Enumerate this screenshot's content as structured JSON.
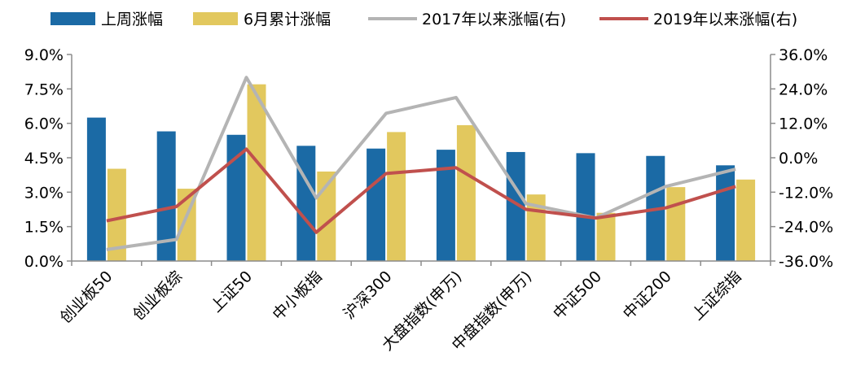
{
  "chart_data": {
    "type": "bar",
    "categories": [
      "创业板50",
      "创业板综",
      "上证50",
      "中小板指",
      "沪深300",
      "大盘指数(申万)",
      "中盘指数(申万)",
      "中证500",
      "中证200",
      "上证综指"
    ],
    "series": [
      {
        "name": "上周涨幅",
        "kind": "bar",
        "axis": "left",
        "color": "#1B6AA5",
        "values": [
          6.25,
          5.65,
          5.5,
          5.02,
          4.9,
          4.85,
          4.75,
          4.7,
          4.58,
          4.17
        ]
      },
      {
        "name": "6月累计涨幅",
        "kind": "bar",
        "axis": "left",
        "color": "#E2C85E",
        "values": [
          4.02,
          3.15,
          7.7,
          3.9,
          5.62,
          5.92,
          2.9,
          2.1,
          3.22,
          3.55
        ]
      },
      {
        "name": "2017年以来涨幅(右)",
        "kind": "line",
        "axis": "right",
        "color": "#B4B4B4",
        "values": [
          -32.0,
          -28.5,
          28.0,
          -14.0,
          15.5,
          21.0,
          -16.0,
          -21.0,
          -10.0,
          -4.0
        ]
      },
      {
        "name": "2019年以来涨幅(右)",
        "kind": "line",
        "axis": "right",
        "color": "#C0504D",
        "values": [
          -22.0,
          -17.0,
          3.0,
          -26.0,
          -5.5,
          -3.5,
          -18.0,
          -21.0,
          -17.5,
          -10.0
        ]
      }
    ],
    "y_left": {
      "min": 0,
      "max": 9,
      "step": 1.5,
      "tick_labels": [
        "0.0%",
        "1.5%",
        "3.0%",
        "4.5%",
        "6.0%",
        "7.5%",
        "9.0%"
      ]
    },
    "y_right": {
      "min": -36,
      "max": 36,
      "step": 12,
      "tick_labels": [
        "-36.0%",
        "-24.0%",
        "-12.0%",
        "0.0%",
        "12.0%",
        "24.0%",
        "36.0%"
      ]
    },
    "legend_position": "top",
    "grid": false
  }
}
